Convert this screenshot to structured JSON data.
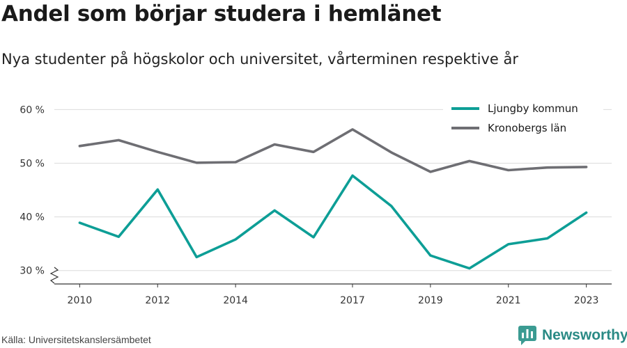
{
  "header": {
    "title": "Andel som börjar studera i hemlänet",
    "subtitle": "Nya studenter på högskolor och universitet, vårterminen respektive år"
  },
  "footer": {
    "source": "Källa: Universitetskanslersämbetet",
    "brand": "Newsworthy",
    "brand_icon": "bar-chart-logo-icon",
    "brand_color": "#3b9b92"
  },
  "chart_data": {
    "type": "line",
    "x": [
      2010,
      2011,
      2012,
      2013,
      2014,
      2015,
      2016,
      2017,
      2018,
      2019,
      2020,
      2021,
      2022,
      2023
    ],
    "x_ticks": [
      2010,
      2012,
      2014,
      2017,
      2019,
      2021,
      2023
    ],
    "y_ticks": [
      30,
      40,
      50,
      60
    ],
    "y_tick_labels": [
      "30 %",
      "40 %",
      "50 %",
      "60 %"
    ],
    "ylim": [
      27.5,
      62
    ],
    "xlim": [
      2009.35,
      2023.65
    ],
    "grid": true,
    "legend_position": "top-right",
    "axis_break": true,
    "series": [
      {
        "name": "Ljungby kommun",
        "color": "#0d9e96",
        "values": [
          38.9,
          36.3,
          45.1,
          32.5,
          35.8,
          41.2,
          36.2,
          47.7,
          42.0,
          32.8,
          30.4,
          34.9,
          36.0,
          40.8
        ]
      },
      {
        "name": "Kronobergs län",
        "color": "#6e6e73",
        "values": [
          53.2,
          54.3,
          52.1,
          50.1,
          50.2,
          53.5,
          52.1,
          56.3,
          52.0,
          48.4,
          50.4,
          48.7,
          49.2,
          49.3
        ]
      }
    ]
  }
}
